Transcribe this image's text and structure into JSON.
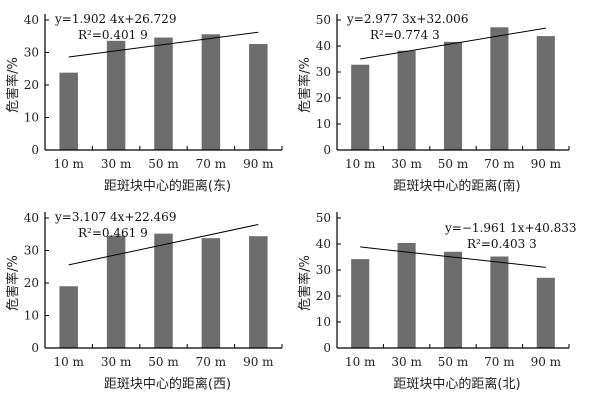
{
  "chart_data": [
    {
      "type": "bar",
      "categories": [
        "10 m",
        "30 m",
        "50 m",
        "70 m",
        "90 m"
      ],
      "values": [
        23.8,
        33.6,
        34.6,
        35.6,
        32.6
      ],
      "ylabel": "危害率/%",
      "xlabel": "距斑块中心的距离(东)",
      "ylim": [
        0,
        40
      ],
      "yticks": [
        0,
        10,
        20,
        30,
        40
      ],
      "trendline": {
        "slope": 1.9024,
        "intercept": 26.729
      },
      "equation": "y=1.902 4x+26.729",
      "r2_label": "R²=0.401 9",
      "equation_position": "top-left",
      "bar_color": "#6d6d6d"
    },
    {
      "type": "bar",
      "categories": [
        "10 m",
        "30 m",
        "50 m",
        "70 m",
        "90 m"
      ],
      "values": [
        32.8,
        38.2,
        41.6,
        47.2,
        43.8
      ],
      "ylabel": "危害率/%",
      "xlabel": "距斑块中心的距离(南)",
      "ylim": [
        0,
        50
      ],
      "yticks": [
        0,
        10,
        20,
        30,
        40,
        50
      ],
      "trendline": {
        "slope": 2.9773,
        "intercept": 32.006
      },
      "equation": "y=2.977 3x+32.006",
      "r2_label": "R²=0.774 3",
      "equation_position": "top-left",
      "bar_color": "#6d6d6d"
    },
    {
      "type": "bar",
      "categories": [
        "10 m",
        "30 m",
        "50 m",
        "70 m",
        "90 m"
      ],
      "values": [
        19.0,
        34.6,
        35.2,
        33.8,
        34.4
      ],
      "ylabel": "危害率/%",
      "xlabel": "距斑块中心的距离(西)",
      "ylim": [
        0,
        40
      ],
      "yticks": [
        0,
        10,
        20,
        30,
        40
      ],
      "trendline": {
        "slope": 3.1074,
        "intercept": 22.469
      },
      "equation": "y=3.107 4x+22.469",
      "r2_label": "R²=0.461 9",
      "equation_position": "top-left",
      "bar_color": "#6d6d6d"
    },
    {
      "type": "bar",
      "categories": [
        "10 m",
        "30 m",
        "50 m",
        "70 m",
        "90 m"
      ],
      "values": [
        34.2,
        40.4,
        37.0,
        35.2,
        27.0
      ],
      "ylabel": "危害率/%",
      "xlabel": "距斑块中心的距离(北)",
      "ylim": [
        0,
        50
      ],
      "yticks": [
        0,
        10,
        20,
        30,
        40,
        50
      ],
      "trendline": {
        "slope": -1.9611,
        "intercept": 40.833
      },
      "equation": "y=−1.961 1x+40.833",
      "r2_label": "R²=0.403 3",
      "equation_position": "top-right",
      "bar_color": "#6d6d6d"
    }
  ]
}
